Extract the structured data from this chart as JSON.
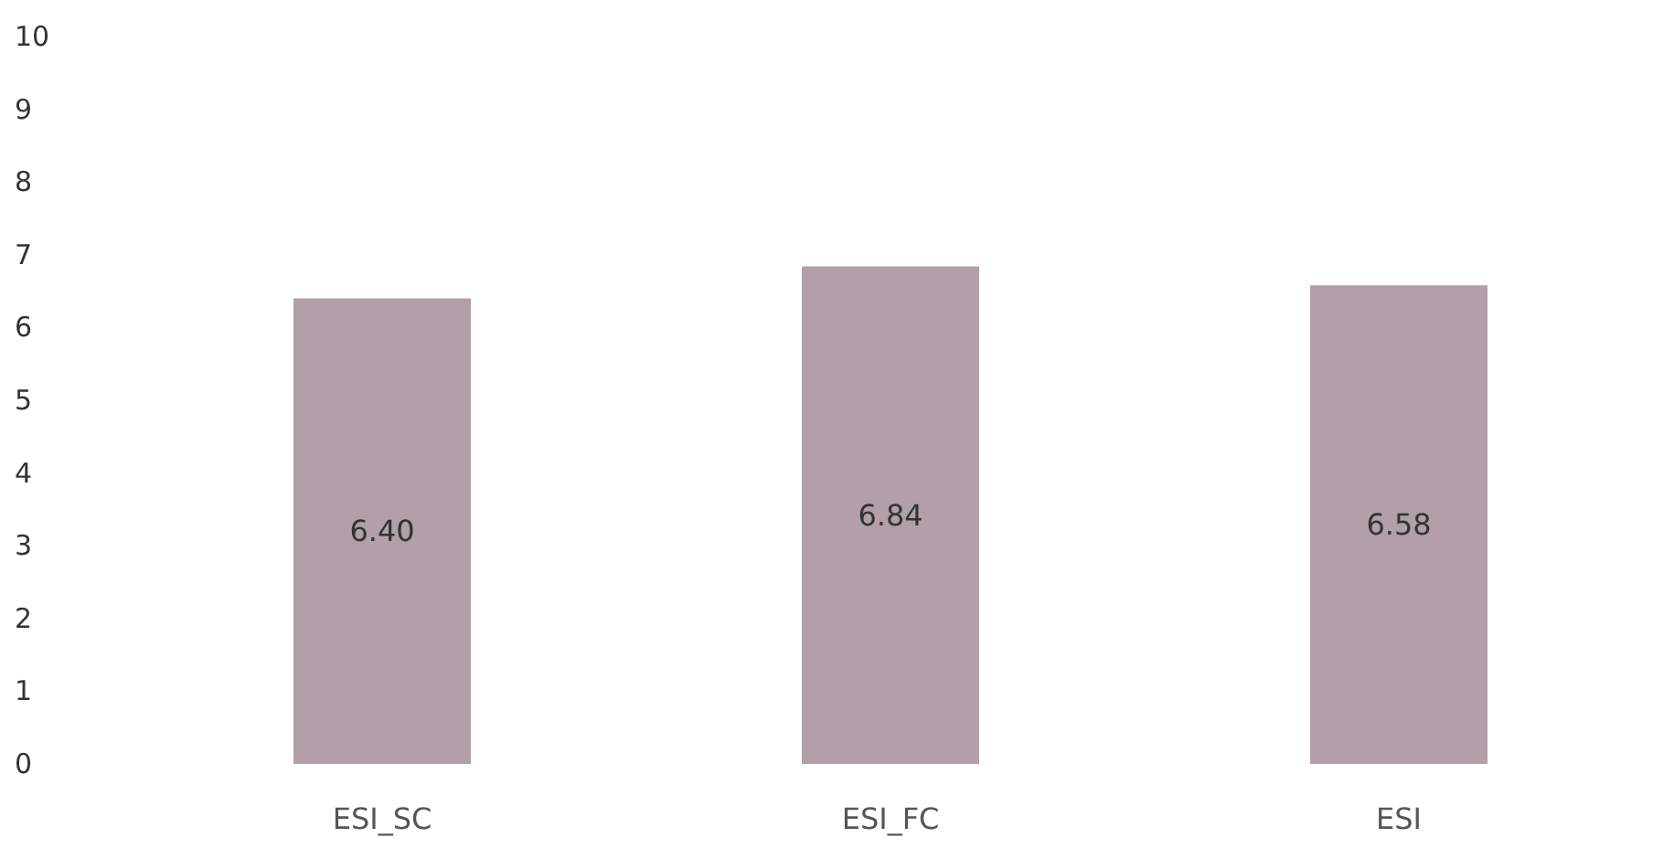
{
  "chart_data": {
    "type": "bar",
    "categories": [
      "ESI_SC",
      "ESI_FC",
      "ESI"
    ],
    "values": [
      6.4,
      6.84,
      6.58
    ],
    "value_labels": [
      "6.40",
      "6.84",
      "6.58"
    ],
    "color": "#b39fa7",
    "ylim": [
      0,
      10
    ],
    "yticks": [
      0,
      1,
      2,
      3,
      4,
      5,
      6,
      7,
      8,
      9,
      10
    ],
    "grid": false
  }
}
